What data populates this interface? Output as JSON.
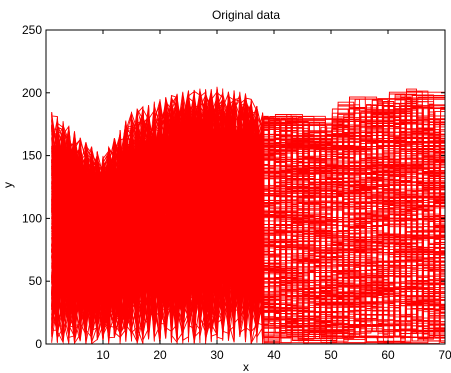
{
  "chart_data": {
    "type": "line",
    "title": "Original data",
    "xlabel": "x",
    "ylabel": "y",
    "xlim": [
      0,
      70
    ],
    "ylim": [
      0,
      250
    ],
    "x_ticks": [
      10,
      20,
      30,
      40,
      50,
      60,
      70
    ],
    "y_ticks": [
      0,
      50,
      100,
      150,
      200,
      250
    ],
    "grid": false,
    "legend": "none",
    "line_color": "#ff0000",
    "description": "Hundreds of overlapping red line series; dense random spikes between x≈1 and x≈38 forming a dome peaking near y≈200 at x≈25–35, then stepped horizontal segments from x≈38 to x=70 with upper envelope ≈180–205.",
    "envelope": {
      "x": [
        1,
        5,
        10,
        15,
        20,
        25,
        30,
        35,
        38,
        40,
        45,
        50,
        55,
        60,
        65,
        70
      ],
      "max": [
        185,
        170,
        150,
        185,
        195,
        203,
        205,
        200,
        185,
        180,
        185,
        172,
        198,
        195,
        205,
        188
      ]
    }
  }
}
